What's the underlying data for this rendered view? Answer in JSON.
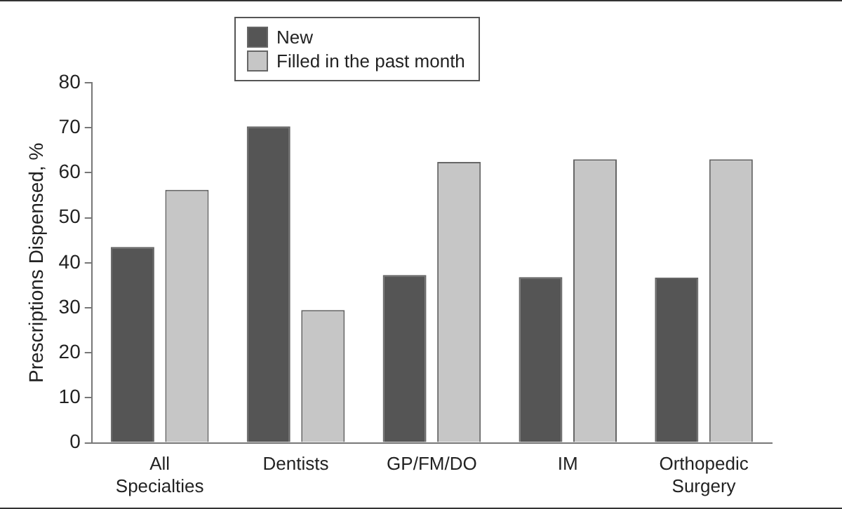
{
  "chart_data": {
    "type": "bar",
    "ylabel": "Prescriptions Dispensed, %",
    "categories": [
      "All Specialties",
      "Dentists",
      "GP/FM/DO",
      "IM",
      "Orthopedic Surgery"
    ],
    "series": [
      {
        "name": "New",
        "color": "#555555",
        "values": [
          43.5,
          70.3,
          37.3,
          36.8,
          36.7
        ]
      },
      {
        "name": "Filled in the past month",
        "color": "#c6c6c6",
        "values": [
          56.2,
          29.5,
          62.4,
          63,
          63
        ]
      }
    ],
    "ylim": [
      0,
      80
    ],
    "yticks": [
      0,
      10,
      20,
      30,
      40,
      50,
      60,
      70,
      80
    ],
    "grid": false,
    "legend": "top left"
  }
}
